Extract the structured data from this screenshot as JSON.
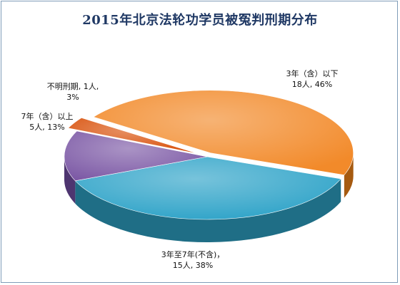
{
  "chart_data": {
    "type": "pie",
    "title": "2015年北京法轮功学员被冤判刑期分布",
    "slices": [
      {
        "name": "3年（含）以下",
        "count_label": "18人",
        "value": 46,
        "percent_label": "46%",
        "color": "#f28a2a",
        "side_color": "#a65a10"
      },
      {
        "name": "3年至7年(不含)",
        "count_label": "15人",
        "value": 38,
        "percent_label": "38%",
        "color": "#2ea3c8",
        "side_color": "#1f6e86"
      },
      {
        "name": "7年（含）以上",
        "count_label": "5人",
        "value": 13,
        "percent_label": "13%",
        "color": "#7d5aa6",
        "side_color": "#4e3570"
      },
      {
        "name": "不明刑期",
        "count_label": "1人",
        "value": 3,
        "percent_label": "3%",
        "color": "#d9530e",
        "side_color": "#8a3208"
      }
    ],
    "three_d": true
  }
}
